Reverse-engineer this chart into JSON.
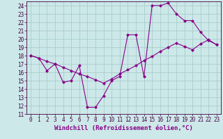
{
  "title": "",
  "xlabel": "Windchill (Refroidissement éolien,°C)",
  "bg_color": "#cce8e8",
  "grid_color": "#aacccc",
  "line_color": "#880088",
  "xlim": [
    -0.5,
    23.5
  ],
  "ylim": [
    11,
    24.5
  ],
  "xticks": [
    0,
    1,
    2,
    3,
    4,
    5,
    6,
    7,
    8,
    9,
    10,
    11,
    12,
    13,
    14,
    15,
    16,
    17,
    18,
    19,
    20,
    21,
    22,
    23
  ],
  "yticks": [
    11,
    12,
    13,
    14,
    15,
    16,
    17,
    18,
    19,
    20,
    21,
    22,
    23,
    24
  ],
  "line1_x": [
    0,
    1,
    2,
    3,
    4,
    5,
    6,
    7,
    8,
    9,
    10,
    11,
    12,
    13,
    14,
    15,
    16,
    17,
    18,
    19,
    20,
    21,
    22,
    23
  ],
  "line1_y": [
    18,
    17.7,
    16.2,
    17.0,
    14.8,
    15.0,
    16.8,
    11.8,
    11.8,
    13.2,
    15.0,
    15.5,
    20.5,
    20.5,
    15.5,
    24.0,
    24.0,
    24.3,
    23.0,
    22.2,
    22.2,
    20.8,
    19.8,
    19.3
  ],
  "line2_x": [
    0,
    1,
    2,
    3,
    4,
    5,
    6,
    7,
    8,
    9,
    10,
    11,
    12,
    13,
    14,
    15,
    16,
    17,
    18,
    19,
    20,
    21,
    22,
    23
  ],
  "line2_y": [
    18,
    17.7,
    17.3,
    17.0,
    16.6,
    16.2,
    15.8,
    15.5,
    15.1,
    14.7,
    15.2,
    15.8,
    16.3,
    16.8,
    17.4,
    17.9,
    18.5,
    19.0,
    19.5,
    19.1,
    18.7,
    19.4,
    19.9,
    19.3
  ],
  "marker": "D",
  "markersize": 2.0,
  "linewidth": 0.8,
  "xlabel_fontsize": 6.5,
  "tick_fontsize": 5.5
}
